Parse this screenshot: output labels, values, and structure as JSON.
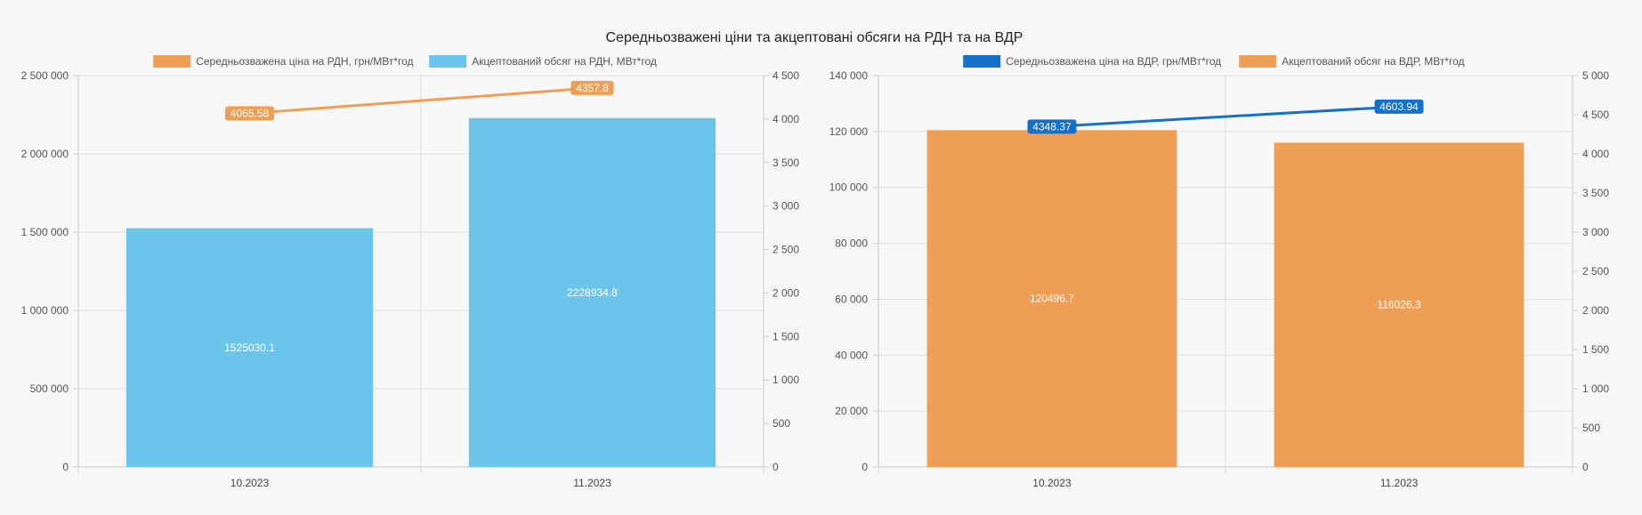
{
  "title": "Середньозважені ціни та акцептовані обсяги на РДН та на ВДР",
  "chart_data": [
    {
      "type": "bar",
      "categories": [
        "10.2023",
        "11.2023"
      ],
      "series": [
        {
          "name": "Середньозважена ціна на РДН, грн/МВт*год",
          "type": "line",
          "axis": "right",
          "color": "#ef9f55",
          "values": [
            4065.58,
            4357.8
          ],
          "labels": [
            "4065.58",
            "4357.8"
          ]
        },
        {
          "name": "Акцептований обсяг на РДН, МВт*год",
          "type": "bar",
          "axis": "left",
          "color": "#6bc4e9",
          "values": [
            1525030.1,
            2228934.8
          ],
          "labels": [
            "1525030.1",
            "2228934.8"
          ]
        }
      ],
      "ylim_left": [
        0,
        2500000
      ],
      "yticks_left": [
        "0",
        "500 000",
        "1 000 000",
        "1 500 000",
        "2 000 000",
        "2 500 000"
      ],
      "ylim_right": [
        0,
        4500
      ],
      "yticks_right": [
        "0",
        "500",
        "1 000",
        "1 500",
        "2 000",
        "2 500",
        "3 000",
        "3 500",
        "4 000",
        "4 500"
      ],
      "grid": true,
      "legend_position": "top"
    },
    {
      "type": "bar",
      "categories": [
        "10.2023",
        "11.2023"
      ],
      "series": [
        {
          "name": "Середньозважена ціна на ВДР, грн/МВт*год",
          "type": "line",
          "axis": "right",
          "color": "#1570cc",
          "values": [
            4348.37,
            4603.94
          ],
          "labels": [
            "4348.37",
            "4603.94"
          ]
        },
        {
          "name": "Акцептований обсяг на ВДР, МВт*год",
          "type": "bar",
          "axis": "left",
          "color": "#ef9f55",
          "values": [
            120496.7,
            116026.3
          ],
          "labels": [
            "120496.7",
            "116026.3"
          ]
        }
      ],
      "ylim_left": [
        0,
        140000
      ],
      "yticks_left": [
        "0",
        "20 000",
        "40 000",
        "60 000",
        "80 000",
        "100 000",
        "120 000",
        "140 000"
      ],
      "ylim_right": [
        0,
        5000
      ],
      "yticks_right": [
        "0",
        "500",
        "1 000",
        "1 500",
        "2 000",
        "2 500",
        "3 000",
        "3 500",
        "4 000",
        "4 500",
        "5 000"
      ],
      "grid": true,
      "legend_position": "top"
    }
  ]
}
